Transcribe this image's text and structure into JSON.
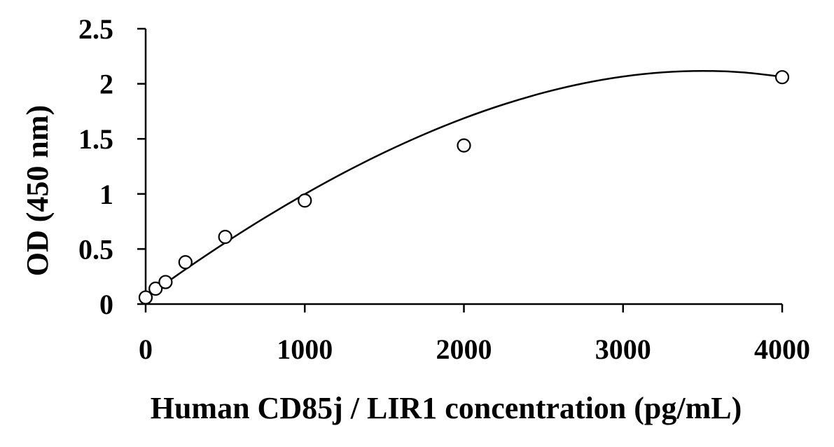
{
  "chart_data": {
    "type": "scatter",
    "title": "",
    "xlabel": "Human CD85j / LIR1 concentration (pg/mL)",
    "ylabel": "OD (450 nm)",
    "xlim": [
      0,
      4000
    ],
    "ylim": [
      0,
      2.5
    ],
    "x_ticks": [
      0,
      1000,
      2000,
      3000,
      4000
    ],
    "x_tick_labels": [
      "0",
      "1000",
      "2000",
      "3000",
      "4000"
    ],
    "y_ticks": [
      0,
      0.5,
      1,
      1.5,
      2,
      2.5
    ],
    "y_tick_labels": [
      "0",
      "0.5",
      "1",
      "1.5",
      "2",
      "2.5"
    ],
    "grid": false,
    "legend": "none",
    "series": [
      {
        "marker": "open-circle",
        "x": [
          0,
          62.5,
          125,
          250,
          500,
          1000,
          2000,
          4000
        ],
        "y": [
          0.06,
          0.14,
          0.2,
          0.38,
          0.61,
          0.94,
          1.44,
          2.06
        ]
      }
    ],
    "fit_curve": {
      "type": "smooth",
      "x": [
        0,
        250,
        500,
        750,
        1000,
        1250,
        1500,
        1750,
        2000,
        2250,
        2500,
        2750,
        3000,
        3250,
        3500,
        3750,
        4000
      ],
      "y": [
        0.06,
        0.315,
        0.557,
        0.785,
        0.998,
        1.196,
        1.377,
        1.541,
        1.687,
        1.813,
        1.919,
        2.004,
        2.066,
        2.104,
        2.117,
        2.104,
        2.064
      ]
    },
    "colors": {
      "axis": "#000000",
      "marker_stroke": "#000000",
      "marker_fill": "#ffffff",
      "curve": "#000000",
      "background": "#ffffff"
    }
  }
}
